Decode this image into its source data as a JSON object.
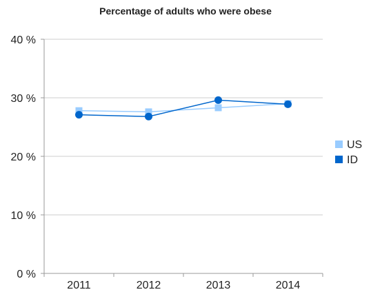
{
  "chart_data": {
    "type": "line",
    "title": "Percentage of adults who were obese",
    "xlabel": "",
    "ylabel": "",
    "categories": [
      "2011",
      "2012",
      "2013",
      "2014"
    ],
    "ylim": [
      0,
      40
    ],
    "y_ticks": [
      0,
      10,
      20,
      30,
      40
    ],
    "y_tick_labels": [
      "0 %",
      "10 %",
      "20 %",
      "30 %",
      "40 %"
    ],
    "grid": true,
    "legend_position": "right",
    "series": [
      {
        "name": "US",
        "color": "#99ccff",
        "marker": "square",
        "values": [
          27.8,
          27.6,
          28.3,
          29.0
        ]
      },
      {
        "name": "ID",
        "color": "#0066cc",
        "marker": "circle",
        "values": [
          27.1,
          26.8,
          29.6,
          28.9
        ]
      }
    ]
  }
}
